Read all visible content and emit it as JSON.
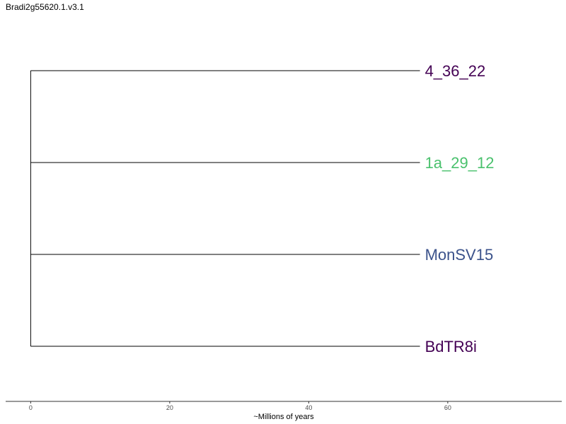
{
  "title": "Bradi2g55620.1.v3.1",
  "tree": {
    "tips": [
      {
        "label": "4_36_22",
        "color": "#440154",
        "x": 56
      },
      {
        "label": "1a_29_12",
        "color": "#4ac16d",
        "x": 56
      },
      {
        "label": "MonSV15",
        "color": "#3b528b",
        "x": 56
      },
      {
        "label": "BdTR8i",
        "color": "#440154",
        "x": 56
      }
    ]
  },
  "axis": {
    "title": "~Millions of years",
    "ticks": [
      0,
      20,
      40,
      60
    ],
    "range": [
      -3.6,
      76.4
    ]
  }
}
